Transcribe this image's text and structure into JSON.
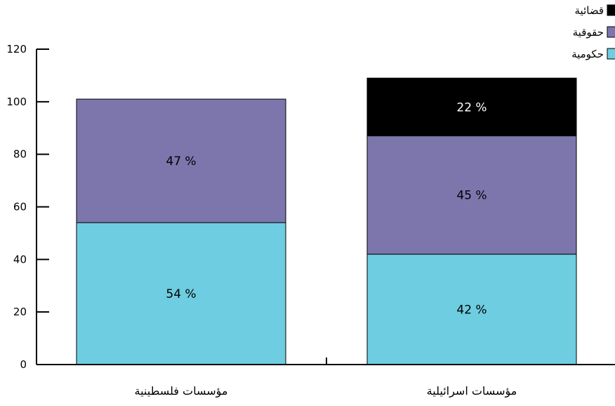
{
  "chart_data": {
    "type": "bar",
    "stacked": true,
    "categories": [
      "مؤسسات فلسطينية",
      "مؤسسات اسرائيلية"
    ],
    "series": [
      {
        "name": "حكومية",
        "color": "#6ecde0",
        "values": [
          54,
          42
        ],
        "labels": [
          "54 %",
          "42 %"
        ]
      },
      {
        "name": "حقوقية",
        "color": "#7d76ad",
        "values": [
          47,
          45
        ],
        "labels": [
          "47 %",
          "45 %"
        ]
      },
      {
        "name": "قضائية",
        "color": "#000000",
        "values": [
          0,
          22
        ],
        "labels": [
          "",
          "22 %"
        ]
      }
    ],
    "yticks": [
      "0",
      "20",
      "40",
      "60",
      "80",
      "100",
      "120"
    ],
    "ylim": [
      0,
      120
    ],
    "grid": false,
    "legend_position": "top-right",
    "title": "",
    "xlabel": "",
    "ylabel": ""
  }
}
